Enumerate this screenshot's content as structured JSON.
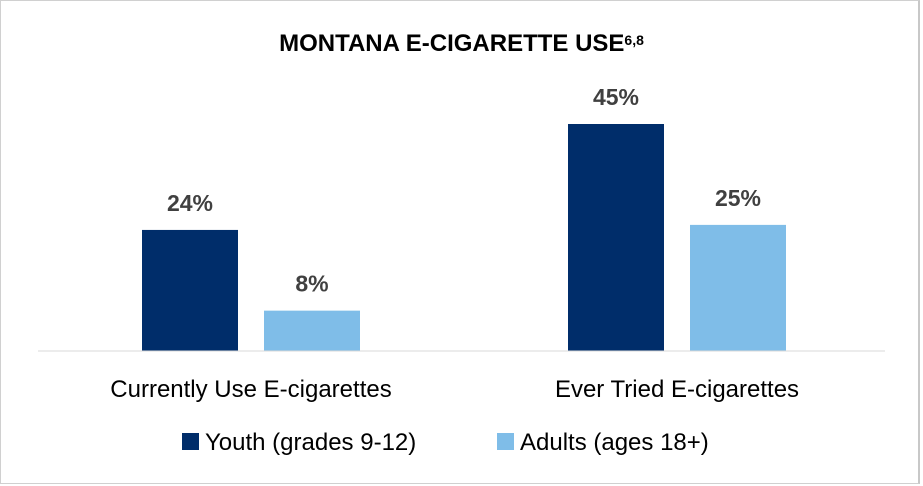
{
  "chart_data": {
    "type": "bar",
    "title": "MONTANA E-CIGARETTE USE",
    "title_superscript": "6,8",
    "categories": [
      "Currently Use E-cigarettes",
      "Ever Tried E-cigarettes"
    ],
    "series": [
      {
        "name": "Youth (grades 9-12)",
        "values": [
          24,
          45
        ],
        "labels": [
          "24%",
          "45%"
        ],
        "color": "#002d6a"
      },
      {
        "name": "Adults (ages 18+)",
        "values": [
          8,
          25
        ],
        "labels": [
          "8%",
          "25%"
        ],
        "color": "#7fbde8"
      }
    ],
    "ylim": [
      0,
      50
    ],
    "grid": false,
    "legend": "bottom"
  }
}
